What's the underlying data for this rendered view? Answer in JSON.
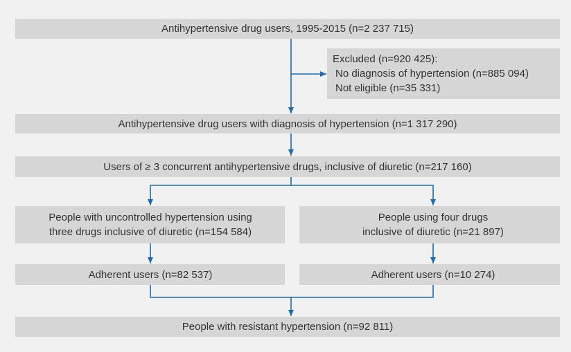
{
  "nodes": [
    {
      "lines": [
        "Antihypertensive drug users, 1995-2015 (n=2 237 715)"
      ]
    },
    {
      "lines": [
        "Excluded (n=920 425):",
        "No diagnosis of hypertension (n=885 094)",
        "Not eligible (n=35 331)"
      ]
    },
    {
      "lines": [
        "Antihypertensive drug users with diagnosis of hypertension (n=1 317 290)"
      ]
    },
    {
      "lines": [
        "Users of ≥ 3 concurrent antihypertensive drugs, inclusive of diuretic (n=217 160)"
      ]
    },
    {
      "lines": [
        "People with uncontrolled hypertension using",
        "three drugs inclusive of diuretic (n=154 584)"
      ]
    },
    {
      "lines": [
        "People using four drugs",
        "inclusive of diuretic (n=21 897)"
      ]
    },
    {
      "lines": [
        "Adherent users (n=82 537)"
      ]
    },
    {
      "lines": [
        "Adherent users (n=10 274)"
      ]
    },
    {
      "lines": [
        "People with resistant hypertension (n=92 811)"
      ]
    }
  ]
}
